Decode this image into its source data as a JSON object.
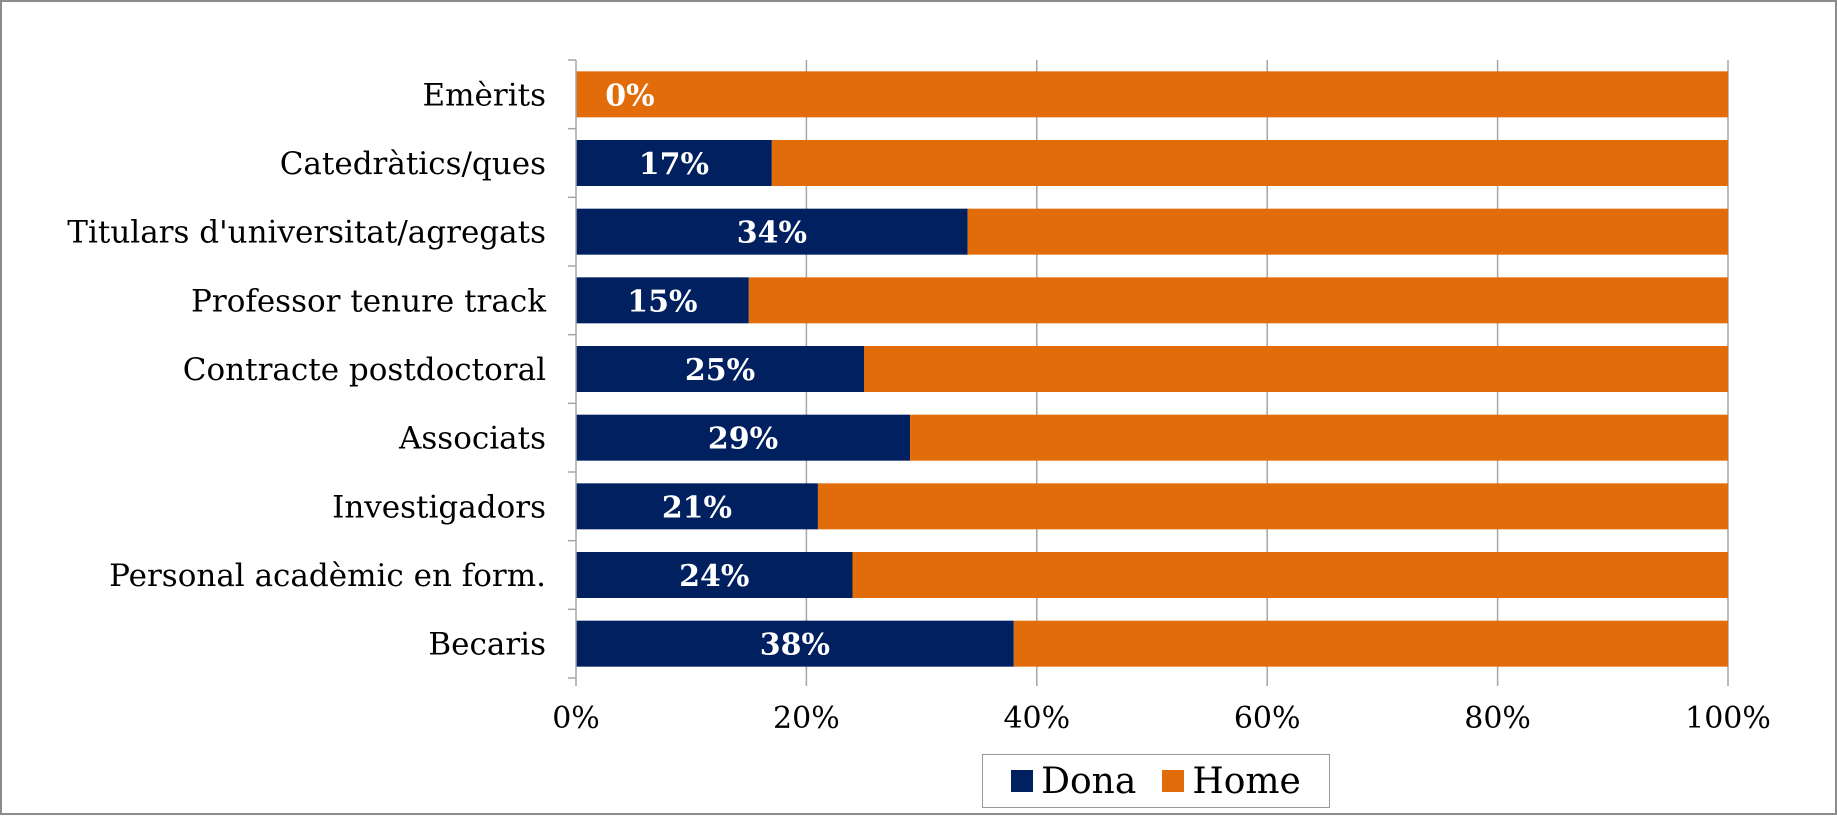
{
  "chart_data": {
    "type": "bar",
    "orientation": "horizontal",
    "stacked": "percent",
    "categories": [
      "Emèrits",
      "Catedràtics/ques",
      "Titulars d'universitat/agregats",
      "Professor tenure track",
      "Contracte postdoctoral",
      "Associats",
      "Investigadors",
      "Personal acadèmic en form.",
      "Becaris"
    ],
    "series": [
      {
        "name": "Dona",
        "values": [
          0,
          17,
          34,
          15,
          25,
          29,
          21,
          24,
          38
        ],
        "color": "#002060"
      },
      {
        "name": "Home",
        "values": [
          100,
          83,
          66,
          85,
          75,
          71,
          79,
          76,
          62
        ],
        "color": "#E36C0A"
      }
    ],
    "data_labels": [
      "0%",
      "17%",
      "34%",
      "15%",
      "25%",
      "29%",
      "21%",
      "24%",
      "38%"
    ],
    "x_ticks": [
      "0%",
      "20%",
      "40%",
      "60%",
      "80%",
      "100%"
    ],
    "xlim": [
      0,
      100
    ],
    "grid": "vertical",
    "legend_position": "bottom",
    "title": "",
    "xlabel": "",
    "ylabel": ""
  }
}
